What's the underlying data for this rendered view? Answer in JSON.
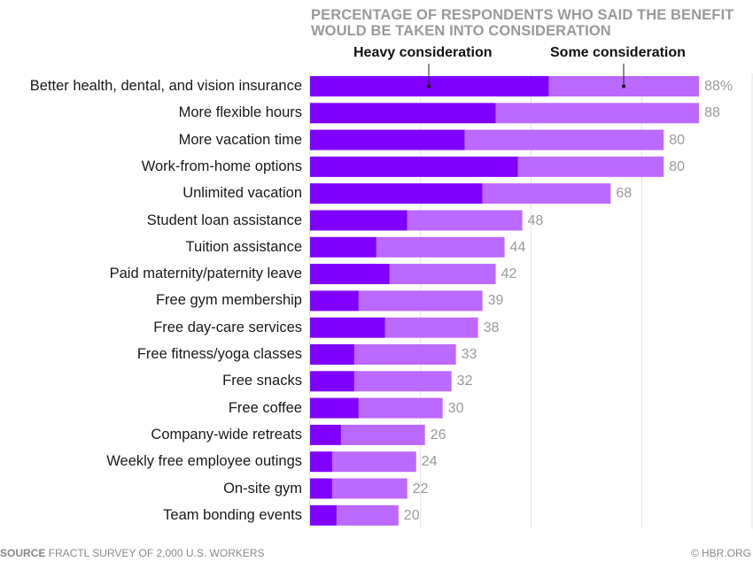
{
  "chart_data": {
    "type": "bar",
    "orientation": "horizontal",
    "stacked": true,
    "title": "PERCENTAGE OF RESPONDENTS WHO SAID THE BENEFIT WOULD BE TAKEN INTO CONSIDERATION",
    "title_lines": [
      "PERCENTAGE OF RESPONDENTS WHO SAID THE BENEFIT",
      "WOULD BE TAKEN INTO CONSIDERATION"
    ],
    "xlabel": "",
    "ylabel": "",
    "xlim": [
      0,
      100
    ],
    "gridlines": [
      25,
      50,
      75,
      100
    ],
    "grid": true,
    "legend_placement": "top",
    "categories": [
      "Better health, dental, and vision insurance",
      "More flexible hours",
      "More vacation time",
      "Work-from-home options",
      "Unlimited vacation",
      "Student loan assistance",
      "Tuition assistance",
      "Paid maternity/paternity leave",
      "Free gym membership",
      "Free day-care services",
      "Free fitness/yoga classes",
      "Free snacks",
      "Free coffee",
      "Company-wide retreats",
      "Weekly free employee outings",
      "On-site gym",
      "Team bonding events"
    ],
    "series": [
      {
        "name": "Heavy consideration",
        "color": "#8000ff",
        "values": [
          54,
          42,
          35,
          47,
          39,
          22,
          15,
          18,
          11,
          17,
          10,
          10,
          11,
          7,
          5,
          5,
          6
        ]
      },
      {
        "name": "Some consideration",
        "color": "#bb66ff",
        "values": [
          34,
          46,
          45,
          33,
          29,
          26,
          29,
          24,
          28,
          21,
          23,
          22,
          19,
          19,
          19,
          17,
          14
        ]
      }
    ],
    "totals": [
      88,
      88,
      80,
      80,
      68,
      48,
      44,
      42,
      39,
      38,
      33,
      32,
      30,
      26,
      24,
      22,
      20
    ],
    "total_labels": [
      "88%",
      "88",
      "80",
      "80",
      "68",
      "48",
      "44",
      "42",
      "39",
      "38",
      "33",
      "32",
      "30",
      "26",
      "24",
      "22",
      "20"
    ]
  },
  "legend": {
    "heavy": "Heavy consideration",
    "some": "Some consideration"
  },
  "footer": {
    "source_label": "SOURCE",
    "source_text": "FRACTL SURVEY OF 2,000 U.S. WORKERS",
    "credit": "© HBR.ORG"
  },
  "colors": {
    "heavy": "#8000ff",
    "some": "#bb66ff",
    "grid": "#e2e2e2",
    "value_text": "#9a9a9a"
  }
}
